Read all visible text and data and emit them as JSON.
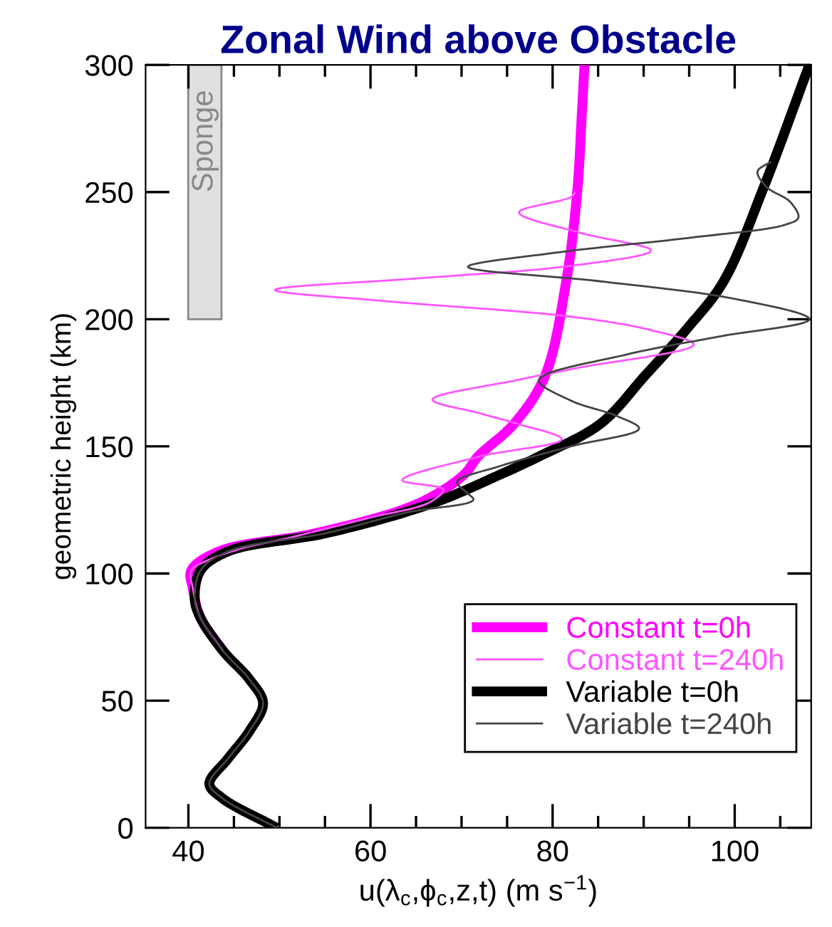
{
  "chart_data": {
    "type": "line",
    "title": "Zonal Wind above Obstacle",
    "xlabel": "u(λ$_{c}$,ϕ$_{c}$,z,t) (m s$^{−1}$)",
    "ylabel": "geometric height (km)",
    "xlim": [
      35.3,
      108.4
    ],
    "xticks": [
      40,
      60,
      80,
      100
    ],
    "ylim": [
      0,
      300
    ],
    "yticks": [
      0,
      50,
      100,
      150,
      200,
      250,
      300
    ],
    "grid": false,
    "legend": "bottom right",
    "bands": [
      {
        "axis": "y",
        "from": 200,
        "to": 300,
        "label": "Sponge",
        "color": "#e0e0e0"
      }
    ],
    "series": [
      {
        "name": "Constant t=0h",
        "color": "#ff00ff",
        "x": [
          83.5,
          83.2,
          82.7,
          81.5,
          79.2,
          75.8,
          71.8,
          70.3,
          65.3,
          54.2,
          43.3,
          40.3,
          40.5,
          41.3,
          43.8
        ],
        "values": [
          300,
          280,
          250,
          215,
          178,
          159,
          146,
          139,
          127.6,
          116,
          108.6,
          101,
          94,
          82.8,
          69.6
        ]
      },
      {
        "name": "Constant t=240h",
        "color": "#ff55ff",
        "x": [
          82.5,
          82,
          76.3,
          83,
          90.8,
          82,
          65,
          49.5,
          62,
          82,
          90.8,
          95.5,
          83,
          76,
          66.8,
          72,
          76,
          81,
          72,
          63.5,
          68,
          66.5,
          60,
          51,
          46,
          42,
          40.3,
          40.5,
          41.3,
          43.8
        ],
        "values": [
          250,
          248,
          242,
          234,
          227,
          221,
          216,
          211.5,
          207,
          201,
          195.7,
          190,
          181,
          176,
          168.4,
          163,
          159,
          152.8,
          146,
          136.7,
          133,
          128,
          122,
          114,
          110,
          105,
          101,
          94,
          82.8,
          69.6
        ]
      },
      {
        "name": "Variable t=0h",
        "color": "#000000",
        "x": [
          108.2,
          103.2,
          98.8,
          94.7,
          90.2,
          85.3,
          78.5,
          74.3,
          66.8,
          55.3,
          44.3,
          41.3,
          40.7,
          41.3,
          43.8,
          46.7,
          48.2,
          46.7,
          44.3,
          42.3,
          43.7,
          49.7
        ],
        "values": [
          300,
          252,
          215,
          196,
          178,
          159,
          146,
          139,
          127.6,
          116,
          108.6,
          101,
          90,
          82.8,
          69.6,
          58.4,
          49,
          38,
          27,
          17.3,
          11.7,
          0
        ]
      },
      {
        "name": "Variable t=240h",
        "color": "#444444",
        "x": [
          104,
          102.5,
          103.5,
          106.1,
          107,
          105.5,
          95,
          80,
          70.7,
          85,
          100,
          108.2,
          98,
          88,
          78.5,
          82,
          87,
          89.5,
          82,
          74,
          69.5,
          70.5,
          71.3,
          64,
          55.3,
          44.3,
          41.3,
          40.7,
          41.3,
          43.8,
          46.7,
          48.2,
          46.7,
          44.3,
          42.3,
          43.7,
          49.7
        ],
        "values": [
          262,
          258,
          252,
          246.1,
          240,
          237.1,
          232,
          226,
          220.6,
          215,
          208,
          200,
          193,
          186,
          176,
          168,
          162,
          157,
          150,
          142,
          136,
          132,
          129,
          124,
          116,
          108.6,
          101,
          90,
          82.8,
          69.6,
          58.4,
          49,
          38,
          27,
          17.3,
          11.7,
          0
        ]
      }
    ]
  }
}
